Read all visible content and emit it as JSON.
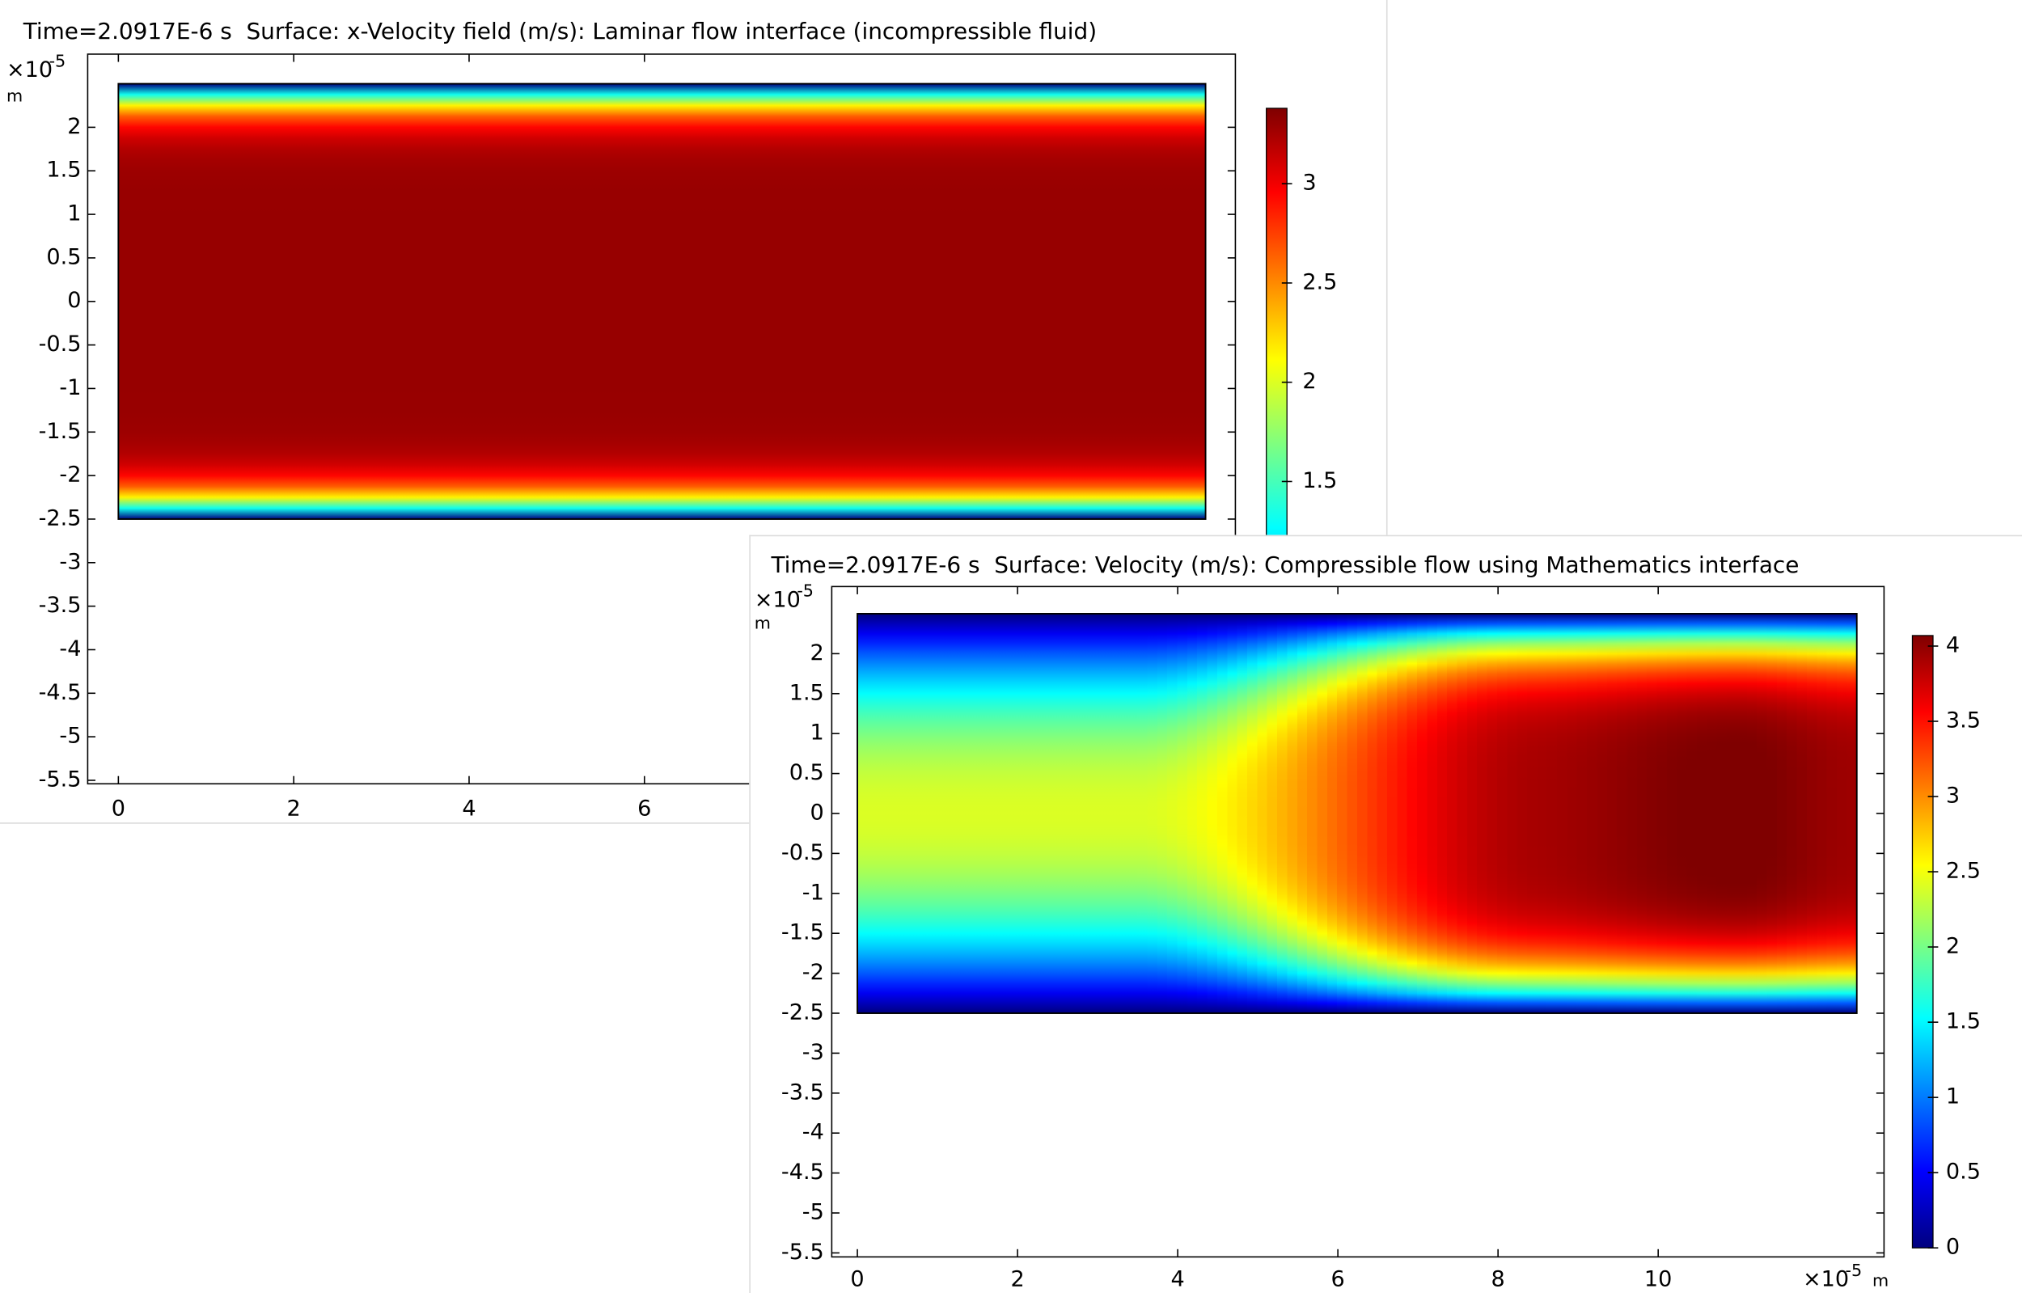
{
  "chart_data": [
    {
      "type": "surface",
      "title": "Time=2.0917E-6 s  Surface: x-Velocity field (m/s): Laminar flow interface (incompressible fluid)",
      "y_multiplier": "×10",
      "y_exponent": "-5",
      "y_unit": "m",
      "xlim": [
        -0.35,
        12.74
      ],
      "ylim": [
        -5.54,
        2.84
      ],
      "xticks": [
        0,
        2,
        4,
        6
      ],
      "yticks": [
        2,
        1.5,
        1,
        0.5,
        0,
        -0.5,
        -1,
        -1.5,
        -2,
        -2.5,
        -3,
        -3.5,
        -4,
        -4.5,
        -5,
        -5.5
      ],
      "domain_x": [
        0,
        12.4
      ],
      "domain_y": [
        -2.5,
        2.5
      ],
      "colorbar_lim": [
        0,
        3.38
      ],
      "colorbar_ticks": [
        3,
        2.5,
        2,
        1.5
      ],
      "colormap": [
        "#00007f",
        "#0000ff",
        "#007fff",
        "#00ffff",
        "#7fff7f",
        "#ffff00",
        "#ff7f00",
        "#ff0000",
        "#7f0000"
      ]
    },
    {
      "type": "surface",
      "title": "Time=2.0917E-6 s  Surface: Velocity (m/s): Compressible flow using Mathematics interface",
      "y_multiplier": "×10",
      "y_exponent": "-5",
      "y_unit": "m",
      "x_multiplier": "×10",
      "x_exponent": "-5",
      "x_unit": "m",
      "xlim": [
        -0.32,
        12.82
      ],
      "ylim": [
        -5.55,
        2.84
      ],
      "xticks": [
        0,
        2,
        4,
        6,
        8,
        10
      ],
      "yticks": [
        2,
        1.5,
        1,
        0.5,
        0,
        -0.5,
        -1,
        -1.5,
        -2,
        -2.5,
        -3,
        -3.5,
        -4,
        -4.5,
        -5,
        -5.5
      ],
      "domain_x": [
        0,
        12.48
      ],
      "domain_y": [
        -2.5,
        2.5
      ],
      "colorbar_lim": [
        0,
        4.07
      ],
      "colorbar_ticks": [
        0,
        0.5,
        1,
        1.5,
        2,
        2.5,
        3,
        3.5,
        4
      ],
      "colormap": [
        "#00007f",
        "#0000ff",
        "#007fff",
        "#00ffff",
        "#7fff7f",
        "#ffff00",
        "#ff7f00",
        "#ff0000",
        "#7f0000"
      ]
    }
  ]
}
